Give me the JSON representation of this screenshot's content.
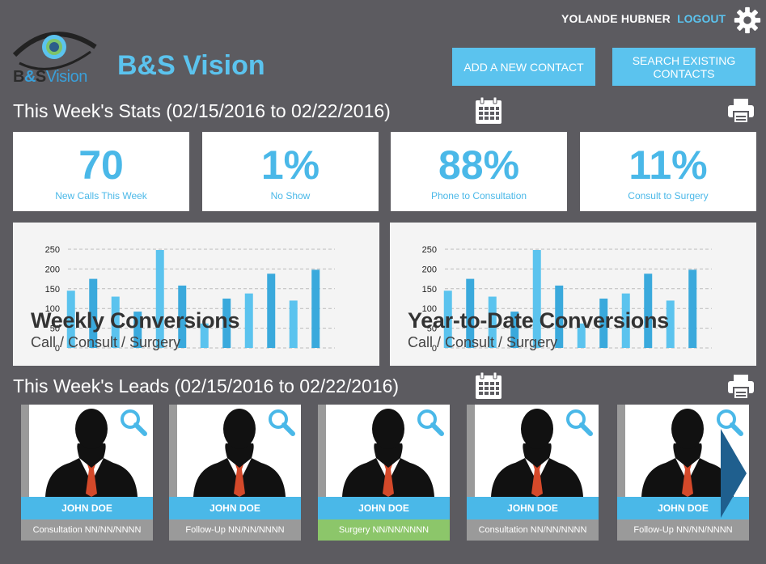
{
  "header": {
    "user_name": "YOLANDE HUBNER",
    "logout_label": "LOGOUT",
    "brand": "B&S Vision",
    "logo_text": {
      "bs_b": "B",
      "bs_amp": "&",
      "bs_s": "S",
      "vision": "Vision"
    },
    "add_contact_label": "ADD A NEW CONTACT",
    "search_contacts_label": "SEARCH EXISTING CONTACTS"
  },
  "stats": {
    "title": "This Week's Stats (02/15/2016 to 02/22/2016)",
    "cards": [
      {
        "value": "70",
        "label": "New Calls This Week"
      },
      {
        "value": "1%",
        "label": "No Show"
      },
      {
        "value": "88%",
        "label": "Phone to Consultation"
      },
      {
        "value": "11%",
        "label": "Consult to Surgery"
      }
    ]
  },
  "chart_data": [
    {
      "type": "bar",
      "title": "Weekly Conversions",
      "subtitle": "Call / Consult / Surgery",
      "ylim": [
        0,
        250
      ],
      "yticks": [
        "0",
        "50",
        "100",
        "150",
        "200",
        "250"
      ],
      "grid": true,
      "values": [
        145,
        175,
        130,
        92,
        248,
        158,
        62,
        125,
        138,
        188,
        120,
        198
      ]
    },
    {
      "type": "bar",
      "title": "Year-to-Date Conversions",
      "subtitle": "Call / Consult / Surgery",
      "ylim": [
        0,
        250
      ],
      "yticks": [
        "0",
        "50",
        "100",
        "150",
        "200",
        "250"
      ],
      "grid": true,
      "values": [
        145,
        175,
        130,
        92,
        248,
        158,
        62,
        125,
        138,
        188,
        120,
        198
      ]
    }
  ],
  "colors": {
    "accent": "#5bc3ee",
    "bar_light": "#5bc3ee",
    "bar_dark": "#3aa9dc",
    "background": "#5c5b60",
    "surgery_green": "#8cc66a"
  },
  "leads": {
    "title": "This Week's Leads (02/15/2016 to 02/22/2016)",
    "items": [
      {
        "name": "JOHN DOE",
        "status": "Consultation NN/NN/NNNN",
        "status_type": "grey"
      },
      {
        "name": "JOHN DOE",
        "status": "Follow-Up NN/NN/NNNN",
        "status_type": "grey"
      },
      {
        "name": "JOHN DOE",
        "status": "Surgery NN/NN/NNNN",
        "status_type": "green"
      },
      {
        "name": "JOHN DOE",
        "status": "Consultation NN/NN/NNNN",
        "status_type": "grey"
      },
      {
        "name": "JOHN DOE",
        "status": "Follow-Up NN/NN/NNNN",
        "status_type": "grey"
      }
    ]
  },
  "icons": {
    "settings": "gear-icon",
    "calendar": "calendar-icon",
    "print": "printer-icon",
    "zoom": "magnifier-icon",
    "next": "arrow-right-icon"
  }
}
